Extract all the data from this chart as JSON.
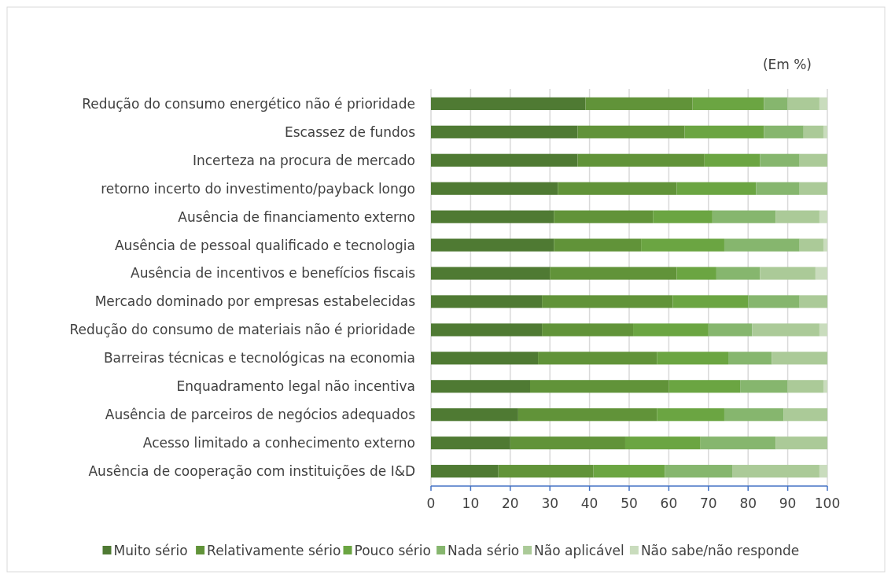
{
  "chart_data": {
    "type": "bar",
    "orientation": "horizontal",
    "stacked": true,
    "categories": [
      "Redução do consumo energético não é prioridade",
      "Escassez de fundos",
      "Incerteza na procura de mercado",
      "retorno incerto do investimento/payback longo",
      "Ausência de financiamento externo",
      "Ausência de pessoal qualificado e tecnologia",
      "Ausência de incentivos e benefícios fiscais",
      "Mercado dominado por empresas estabelecidas",
      "Redução do consumo de materiais não é prioridade",
      "Barreiras técnicas e tecnológicas na economia",
      "Enquadramento legal não incentiva",
      "Ausência de parceiros de negócios adequados",
      "Acesso limitado a conhecimento externo",
      "Ausência de cooperação com instituições de I&D"
    ],
    "series": [
      {
        "name": "Muito sério",
        "color": "#4f7a33",
        "values": [
          39,
          37,
          37,
          32,
          31,
          31,
          30,
          28,
          28,
          27,
          25,
          22,
          20,
          17
        ]
      },
      {
        "name": "Relativamente sério",
        "color": "#619339",
        "values": [
          27,
          27,
          32,
          30,
          25,
          22,
          32,
          33,
          23,
          30,
          35,
          35,
          29,
          24
        ]
      },
      {
        "name": "Pouco sério",
        "color": "#6ba542",
        "values": [
          18,
          20,
          14,
          20,
          15,
          21,
          10,
          19,
          19,
          18,
          18,
          17,
          19,
          18
        ]
      },
      {
        "name": "Nada sério",
        "color": "#86b66e",
        "values": [
          6,
          10,
          10,
          11,
          16,
          19,
          11,
          13,
          11,
          11,
          12,
          15,
          19,
          17
        ]
      },
      {
        "name": "Não aplicável",
        "color": "#abca98",
        "values": [
          8,
          5,
          7,
          7,
          11,
          6,
          14,
          7,
          17,
          14,
          9,
          11,
          13,
          22
        ]
      },
      {
        "name": "Não sabe/não responde",
        "color": "#c9dcbd",
        "values": [
          2,
          1,
          0,
          0,
          2,
          1,
          3,
          0,
          2,
          0,
          1,
          0,
          0,
          2
        ]
      }
    ],
    "xlim": [
      0,
      100
    ],
    "xticks": [
      0,
      10,
      20,
      30,
      40,
      50,
      60,
      70,
      80,
      90,
      100
    ],
    "grid": "x",
    "legend": "bottom",
    "annotations": [
      "(Em %)"
    ]
  }
}
